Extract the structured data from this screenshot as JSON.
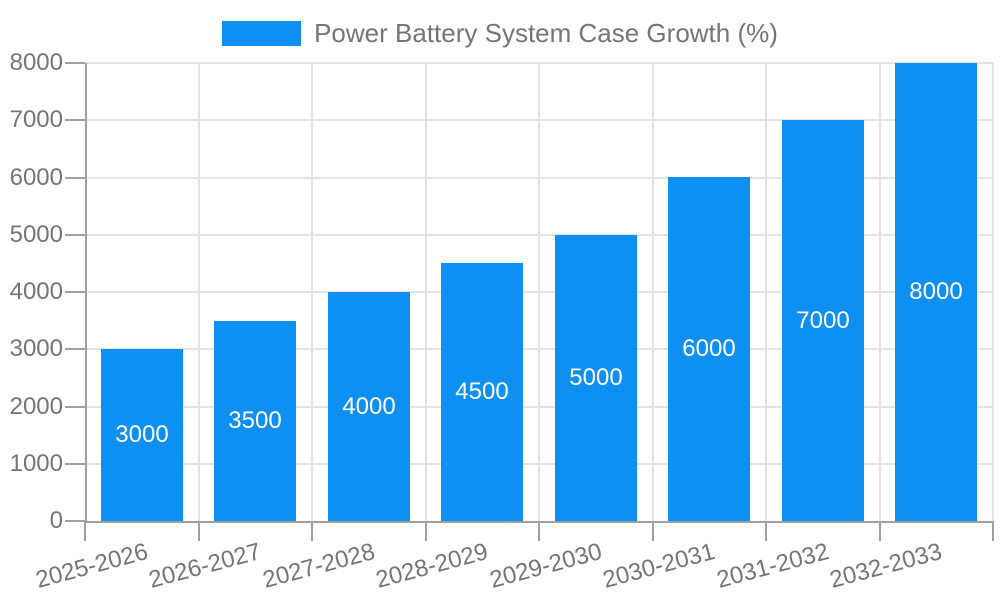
{
  "legend": {
    "label": "Power Battery System Case Growth (%)"
  },
  "colors": {
    "bar": "#0e8ff2",
    "grid_line": "#e3e3e3",
    "axis_line": "#a0a0a0",
    "label_text": "#757575",
    "bar_label_text": "#ffffff",
    "background": "#ffffff"
  },
  "chart_data": {
    "type": "bar",
    "title": "Power Battery System Case Growth (%)",
    "legend_entries": [
      "Power Battery System Case Growth (%)"
    ],
    "legend_position": "top-center",
    "categories": [
      "2025-2026",
      "2026-2027",
      "2027-2028",
      "2028-2029",
      "2029-2030",
      "2030-2031",
      "2031-2032",
      "2032-2033"
    ],
    "values": [
      3000,
      3500,
      4000,
      4500,
      5000,
      6000,
      7000,
      8000
    ],
    "bar_value_labels": [
      "3000",
      "3500",
      "4000",
      "4500",
      "5000",
      "6000",
      "7000",
      "8000"
    ],
    "xlabel": "",
    "ylabel": "",
    "ylim": [
      0,
      8000
    ],
    "yticks": [
      0,
      1000,
      2000,
      3000,
      4000,
      5000,
      6000,
      7000,
      8000
    ],
    "ytick_labels": [
      "0",
      "1000",
      "2000",
      "3000",
      "4000",
      "5000",
      "6000",
      "7000",
      "8000"
    ],
    "grid": true,
    "vertical_grid_at_category_boundaries": true,
    "x_label_rotation_deg": -15,
    "value_label_position": "inside-center"
  }
}
